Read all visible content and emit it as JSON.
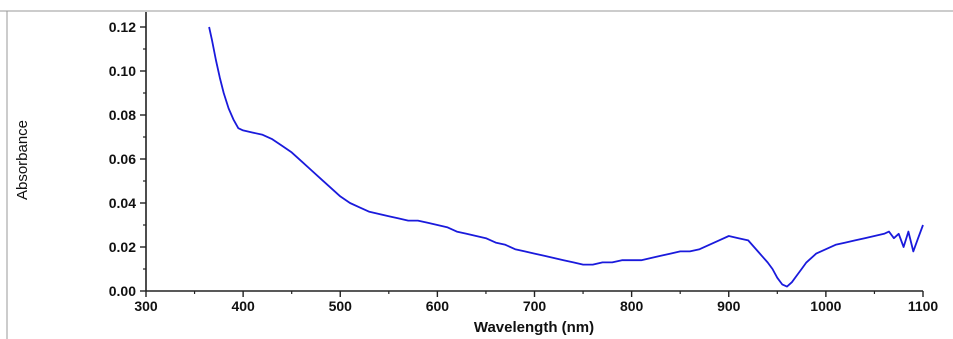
{
  "chart_data": {
    "type": "line",
    "title": "",
    "xlabel": "Wavelength (nm)",
    "ylabel": "Absorbance",
    "xlim": [
      300,
      1100
    ],
    "ylim": [
      0.0,
      0.12
    ],
    "x_ticks": [
      300,
      400,
      500,
      600,
      700,
      800,
      900,
      1000,
      1100
    ],
    "x_tick_labels": [
      "300",
      "400",
      "500",
      "600",
      "700",
      "800",
      "900",
      "1000",
      "1100"
    ],
    "y_ticks": [
      0.0,
      0.02,
      0.04,
      0.06,
      0.08,
      0.1,
      0.12
    ],
    "y_tick_labels": [
      "0.00",
      "0.02",
      "0.04",
      "0.06",
      "0.08",
      "0.10",
      "0.12"
    ],
    "grid": false,
    "legend": "none",
    "line_color": "#1a1adc",
    "series": [
      {
        "x": [
          365,
          368,
          372,
          376,
          380,
          385,
          390,
          395,
          400,
          410,
          420,
          430,
          440,
          450,
          460,
          470,
          480,
          490,
          500,
          510,
          520,
          530,
          540,
          550,
          560,
          570,
          580,
          590,
          600,
          610,
          620,
          630,
          640,
          650,
          660,
          670,
          680,
          690,
          700,
          710,
          720,
          730,
          740,
          750,
          760,
          770,
          780,
          790,
          800,
          810,
          820,
          830,
          840,
          850,
          860,
          870,
          880,
          890,
          900,
          910,
          920,
          930,
          940,
          945,
          950,
          955,
          960,
          965,
          970,
          975,
          980,
          990,
          1000,
          1010,
          1020,
          1030,
          1040,
          1050,
          1060,
          1065,
          1070,
          1075,
          1080,
          1085,
          1090,
          1095,
          1100
        ],
        "y": [
          0.12,
          0.114,
          0.105,
          0.097,
          0.09,
          0.083,
          0.078,
          0.074,
          0.073,
          0.072,
          0.071,
          0.069,
          0.066,
          0.063,
          0.059,
          0.055,
          0.051,
          0.047,
          0.043,
          0.04,
          0.038,
          0.036,
          0.035,
          0.034,
          0.033,
          0.032,
          0.032,
          0.031,
          0.03,
          0.029,
          0.027,
          0.026,
          0.025,
          0.024,
          0.022,
          0.021,
          0.019,
          0.018,
          0.017,
          0.016,
          0.015,
          0.014,
          0.013,
          0.012,
          0.012,
          0.013,
          0.013,
          0.014,
          0.014,
          0.014,
          0.015,
          0.016,
          0.017,
          0.018,
          0.018,
          0.019,
          0.021,
          0.023,
          0.025,
          0.024,
          0.023,
          0.018,
          0.013,
          0.01,
          0.006,
          0.003,
          0.002,
          0.004,
          0.007,
          0.01,
          0.013,
          0.017,
          0.019,
          0.021,
          0.022,
          0.023,
          0.024,
          0.025,
          0.026,
          0.027,
          0.024,
          0.026,
          0.02,
          0.027,
          0.018,
          0.024,
          0.03
        ]
      }
    ]
  }
}
